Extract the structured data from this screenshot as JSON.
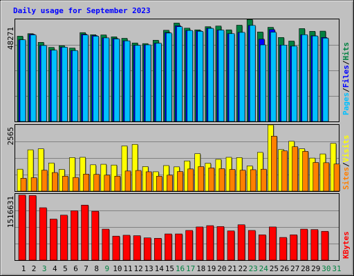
{
  "title": "Daily usage for September 2023",
  "colors": {
    "background": "#C0C0C0",
    "plot": "#C0C0C0",
    "title": "#0000FF",
    "hits": "#008040",
    "files": "#0000FF",
    "pages": "#00C0FF",
    "visits": "#FFFF00",
    "sites": "#FF8000",
    "kbytes": "#FF0000",
    "weekend_label": "#008040",
    "weekday_label": "#000000"
  },
  "panels": {
    "top": {
      "max_label": "48271",
      "max": 48271,
      "legend": [
        "Pages",
        "Files",
        "Hits"
      ]
    },
    "mid": {
      "max_label": "2565",
      "max": 2565,
      "legend": [
        "Sites",
        "Visits"
      ]
    },
    "bottom": {
      "max_label": "1516631",
      "max": 1516631,
      "legend": [
        "KBytes"
      ]
    }
  },
  "chart_data": {
    "type": "bar",
    "title": "Daily usage for September 2023",
    "days": [
      "1",
      "2",
      "3",
      "4",
      "5",
      "6",
      "7",
      "8",
      "9",
      "10",
      "11",
      "12",
      "13",
      "14",
      "15",
      "16",
      "17",
      "18",
      "19",
      "20",
      "21",
      "22",
      "23",
      "24",
      "25",
      "26",
      "27",
      "28",
      "29",
      "30",
      "31"
    ],
    "weekend_days": [
      3,
      9,
      16,
      17,
      23,
      24,
      30,
      31
    ],
    "series": [
      {
        "name": "Hits",
        "panel": "top",
        "values": [
          40300,
          41500,
          37400,
          35000,
          35800,
          34700,
          42000,
          41000,
          40900,
          40000,
          39300,
          37100,
          36800,
          38400,
          43100,
          46500,
          44100,
          43300,
          44800,
          45100,
          43300,
          45500,
          48200,
          42300,
          44500,
          39700,
          38000,
          43900,
          42600,
          42700,
          null
        ]
      },
      {
        "name": "Files",
        "panel": "top",
        "values": [
          38600,
          41200,
          35900,
          33700,
          35100,
          33500,
          41200,
          40600,
          39500,
          39200,
          38100,
          36000,
          36200,
          37000,
          42000,
          45200,
          43000,
          42800,
          44100,
          43200,
          41500,
          42100,
          45400,
          38900,
          43400,
          36100,
          35600,
          41000,
          40500,
          39700,
          null
        ]
      },
      {
        "name": "Pages",
        "panel": "top",
        "values": [
          38600,
          40900,
          35900,
          33700,
          35100,
          33500,
          40900,
          40300,
          39500,
          39000,
          38100,
          36000,
          36200,
          37000,
          41800,
          44800,
          43000,
          42600,
          44000,
          43200,
          41500,
          42100,
          45400,
          36200,
          42200,
          36100,
          35600,
          41000,
          40400,
          39400,
          null
        ]
      },
      {
        "name": "Visits",
        "panel": "mid",
        "values": [
          850,
          1600,
          1640,
          1090,
          840,
          1300,
          1310,
          1020,
          1040,
          1010,
          1750,
          1810,
          950,
          750,
          990,
          940,
          1170,
          1450,
          1080,
          1230,
          1310,
          1300,
          975,
          1500,
          2565,
          1610,
          1930,
          1640,
          1280,
          1440,
          1850
        ]
      },
      {
        "name": "Sites",
        "panel": "mid",
        "values": [
          500,
          520,
          810,
          720,
          580,
          530,
          660,
          650,
          620,
          580,
          780,
          800,
          750,
          580,
          620,
          760,
          860,
          950,
          900,
          870,
          840,
          810,
          830,
          850,
          2130,
          1560,
          1720,
          1540,
          1110,
          1100,
          1050
        ]
      },
      {
        "name": "KBytes",
        "panel": "bottom",
        "values": [
          1490000,
          1480000,
          1200000,
          940000,
          1030000,
          1130000,
          1260000,
          1120000,
          710000,
          550000,
          570000,
          560000,
          510000,
          500000,
          600000,
          600000,
          680000,
          760000,
          790000,
          770000,
          670000,
          810000,
          680000,
          580000,
          760000,
          520000,
          580000,
          710000,
          700000,
          660000,
          null
        ]
      }
    ],
    "ylim_top": [
      0,
      48271
    ],
    "ylim_mid": [
      0,
      2565
    ],
    "ylim_bottom": [
      0,
      1516631
    ]
  }
}
